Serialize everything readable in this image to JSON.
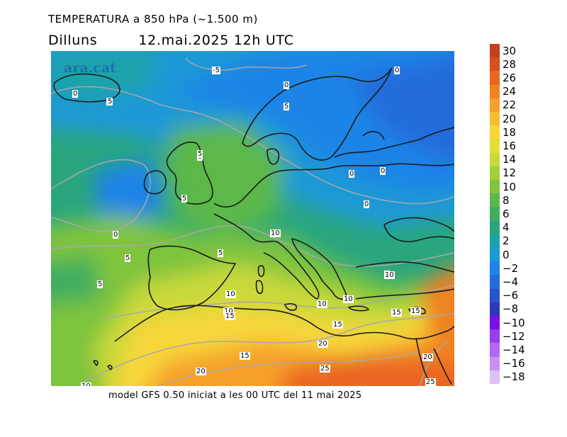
{
  "header": {
    "title": "TEMPERATURA a 850 hPa (~1.500 m)",
    "day": "Dilluns",
    "valid": "12.mai.2025 12h UTC"
  },
  "logo": "ara.cat",
  "footer": "model GFS 0.50 iniciat a les 00 UTC del 11 mai 2025",
  "legend": {
    "items": [
      {
        "label": "30",
        "color": "#c5401d"
      },
      {
        "label": "28",
        "color": "#da4f1f"
      },
      {
        "label": "26",
        "color": "#ea6620"
      },
      {
        "label": "24",
        "color": "#f08224"
      },
      {
        "label": "22",
        "color": "#f6a02a"
      },
      {
        "label": "20",
        "color": "#f7bd2e"
      },
      {
        "label": "18",
        "color": "#f7d63a"
      },
      {
        "label": "16",
        "color": "#e3df3a"
      },
      {
        "label": "14",
        "color": "#c9d93a"
      },
      {
        "label": "12",
        "color": "#a4cf3b"
      },
      {
        "label": "10",
        "color": "#7ec43e"
      },
      {
        "label": "8",
        "color": "#5bb84a"
      },
      {
        "label": "6",
        "color": "#3fae5f"
      },
      {
        "label": "4",
        "color": "#2aa67f"
      },
      {
        "label": "2",
        "color": "#1aa3a8"
      },
      {
        "label": "0",
        "color": "#1b99d6"
      },
      {
        "label": "−2",
        "color": "#1f84e6"
      },
      {
        "label": "−4",
        "color": "#226cdc"
      },
      {
        "label": "−6",
        "color": "#2554cc"
      },
      {
        "label": "−8",
        "color": "#2a3bb8"
      },
      {
        "label": "−10",
        "color": "#7a10e6"
      },
      {
        "label": "−12",
        "color": "#9a3cef"
      },
      {
        "label": "−14",
        "color": "#b368f2"
      },
      {
        "label": "−16",
        "color": "#c890f3"
      },
      {
        "label": "−18",
        "color": "#dcc0f6"
      }
    ]
  },
  "isotherm_labels": [
    {
      "text": "-5"
    },
    {
      "text": "0"
    },
    {
      "text": "0"
    },
    {
      "text": "5"
    },
    {
      "text": "0"
    },
    {
      "text": "5"
    },
    {
      "text": "5"
    },
    {
      "text": "0"
    },
    {
      "text": "0"
    },
    {
      "text": "5"
    },
    {
      "text": "5"
    },
    {
      "text": "0"
    },
    {
      "text": "0"
    },
    {
      "text": "10"
    },
    {
      "text": "0"
    },
    {
      "text": "5"
    },
    {
      "text": "5"
    },
    {
      "text": "5"
    },
    {
      "text": "10"
    },
    {
      "text": "5"
    },
    {
      "text": "10"
    },
    {
      "text": "10"
    },
    {
      "text": "10"
    },
    {
      "text": "10"
    },
    {
      "text": "15"
    },
    {
      "text": "15"
    },
    {
      "text": "15"
    },
    {
      "text": "15"
    },
    {
      "text": "20"
    },
    {
      "text": "15"
    },
    {
      "text": "20"
    },
    {
      "text": "20"
    },
    {
      "text": "25"
    },
    {
      "text": "25"
    },
    {
      "text": "10"
    }
  ]
}
